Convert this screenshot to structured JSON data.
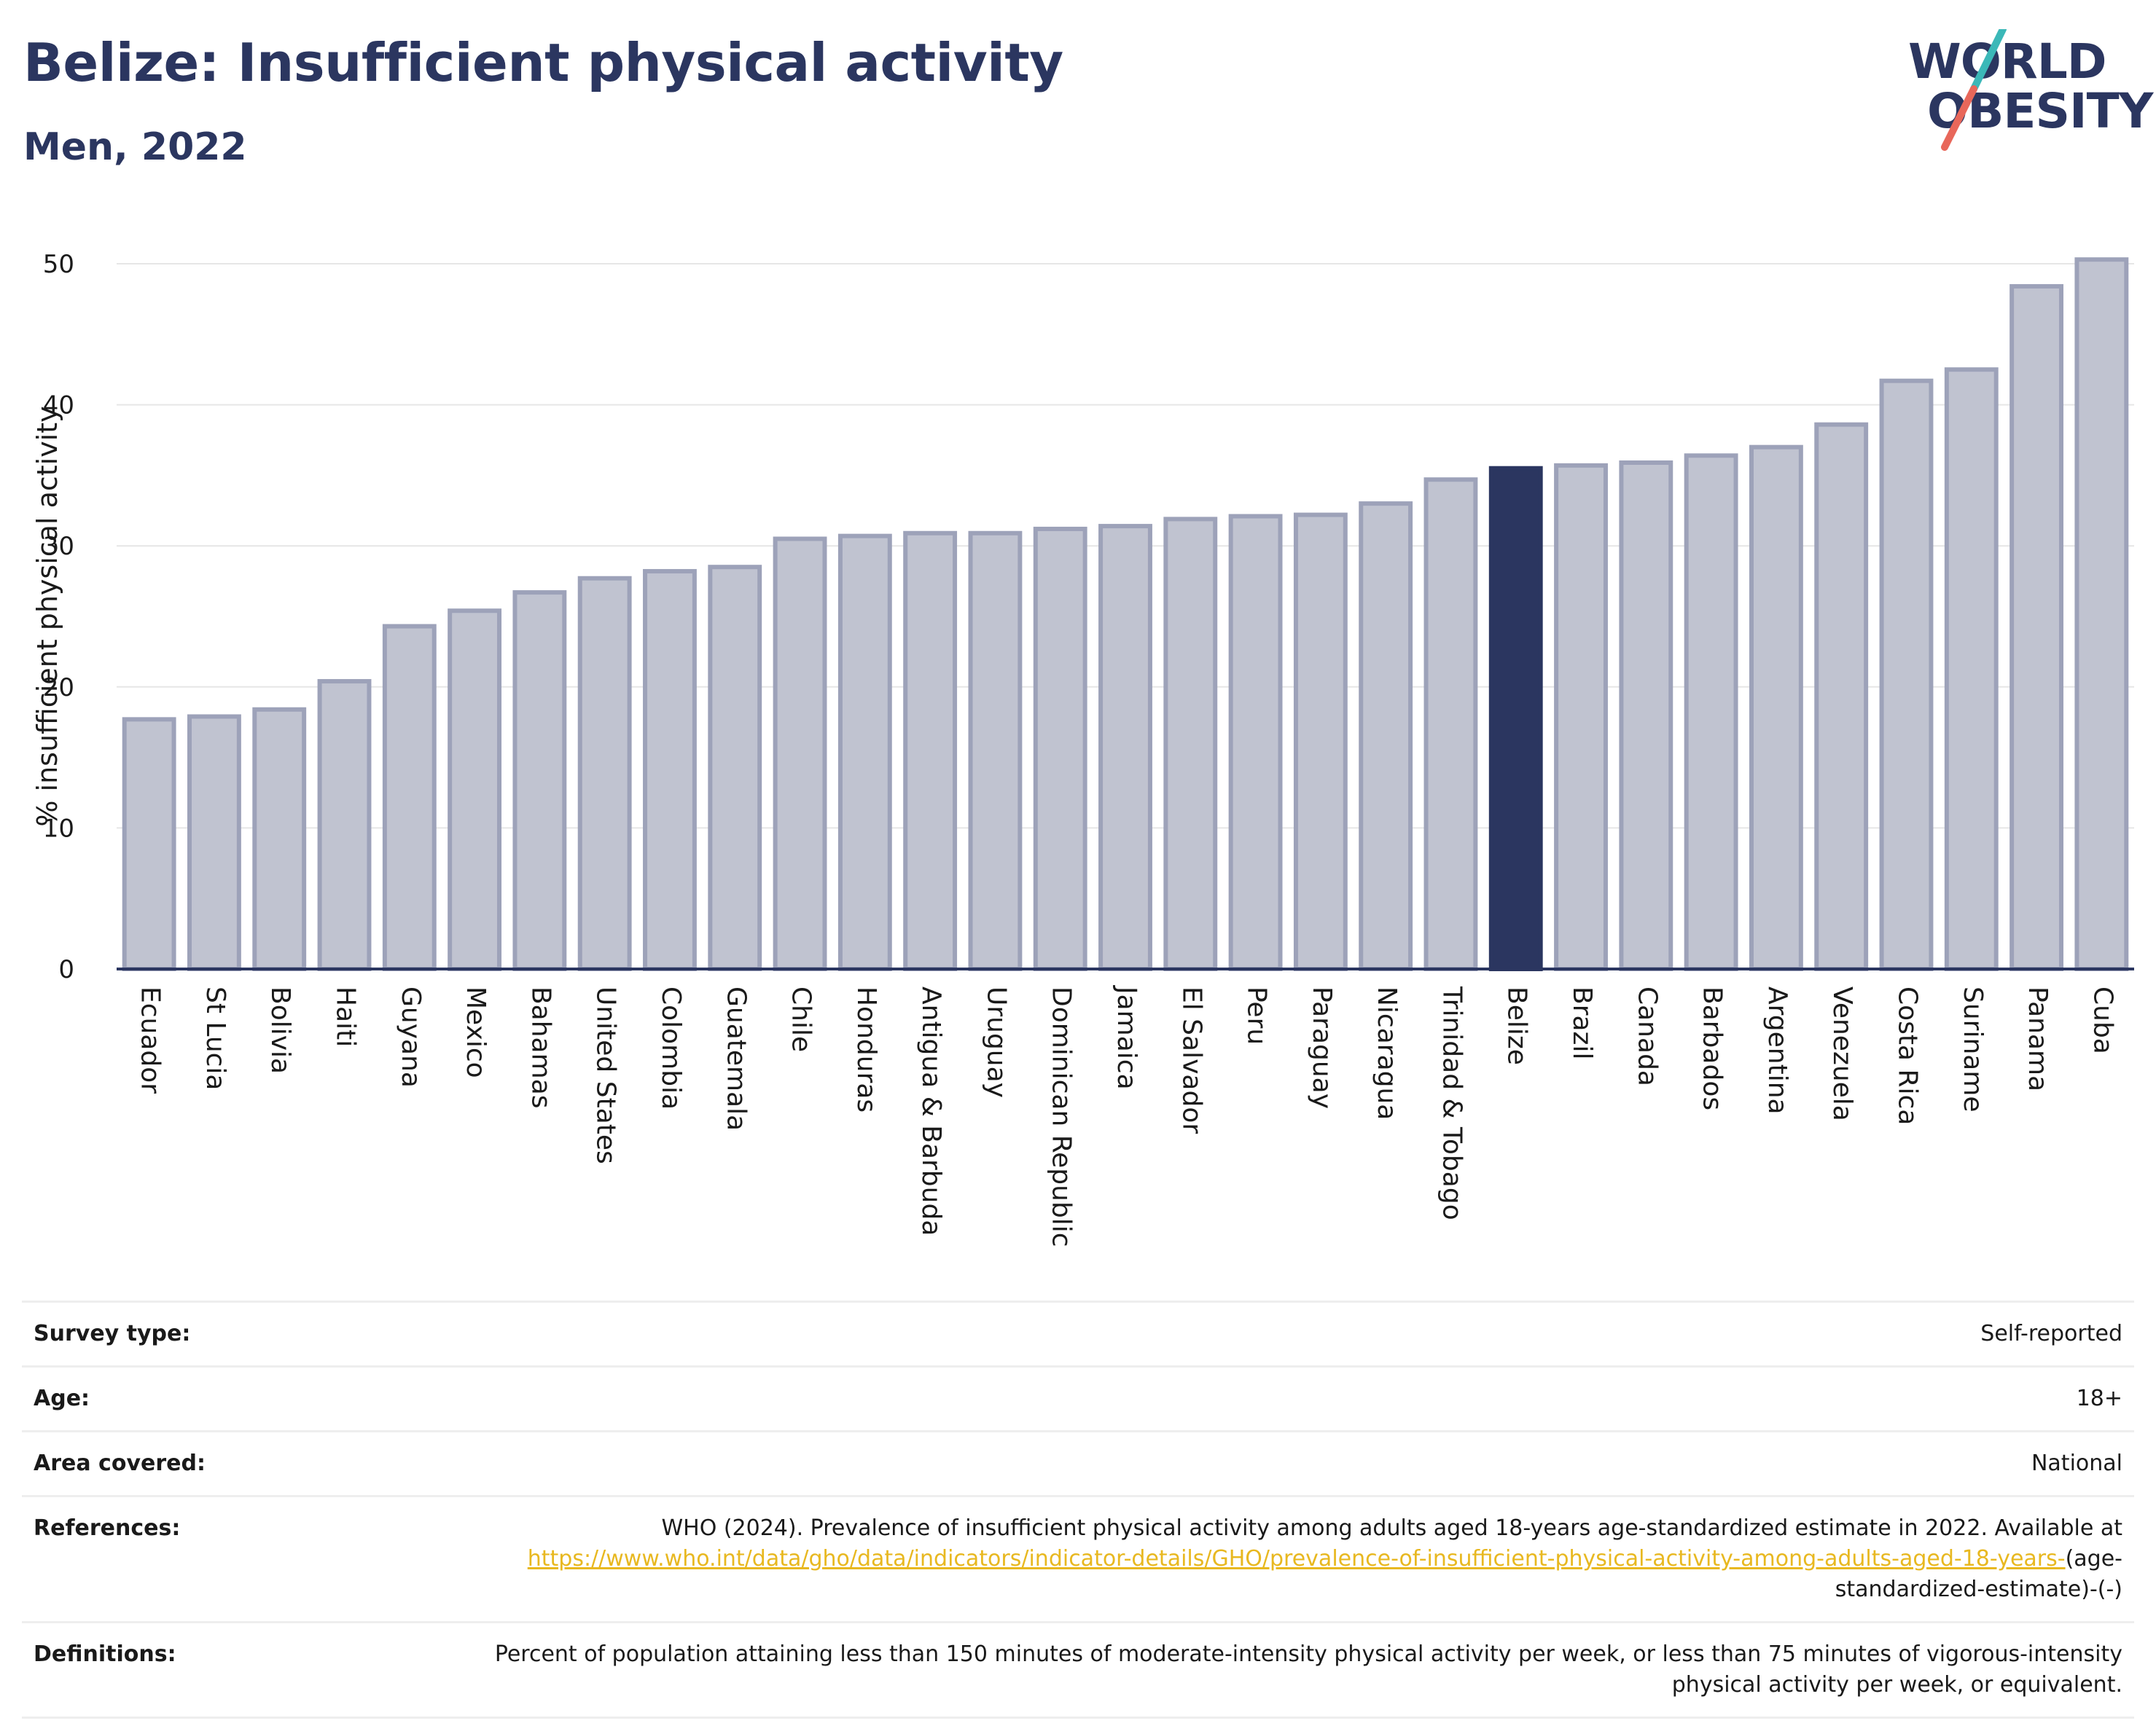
{
  "header": {
    "title": "Belize: Insufficient physical activity",
    "subtitle": "Men, 2022"
  },
  "logo": {
    "line1": "WORLD",
    "line2": "OBESITY",
    "colors": {
      "text": "#2b3660",
      "slash_top": "#3bb8b8",
      "slash_bottom": "#e8675a"
    }
  },
  "colors": {
    "bar_fill": "#c0c3d0",
    "bar_stroke": "#9da2b9",
    "highlight_fill": "#2b3660",
    "grid": "#e6e6e6",
    "axis": "#2b3660"
  },
  "chart_data": {
    "type": "bar",
    "title": "Belize: Insufficient physical activity",
    "subtitle": "Men, 2022",
    "xlabel": "",
    "ylabel": "% insufficient physical activity",
    "ylim": [
      0,
      50
    ],
    "yticks": [
      0,
      10,
      20,
      30,
      40,
      50
    ],
    "grid": true,
    "highlight": "Belize",
    "categories": [
      "Ecuador",
      "St Lucia",
      "Bolivia",
      "Haiti",
      "Guyana",
      "Mexico",
      "Bahamas",
      "United States",
      "Colombia",
      "Guatemala",
      "Chile",
      "Honduras",
      "Antigua & Barbuda",
      "Uruguay",
      "Dominican Republic",
      "Jamaica",
      "El Salvador",
      "Peru",
      "Paraguay",
      "Nicaragua",
      "Trinidad & Tobago",
      "Belize",
      "Brazil",
      "Canada",
      "Barbados",
      "Argentina",
      "Venezuela",
      "Costa Rica",
      "Suriname",
      "Panama",
      "Cuba"
    ],
    "values": [
      17.7,
      17.9,
      18.4,
      20.4,
      24.3,
      25.4,
      26.7,
      27.7,
      28.2,
      28.5,
      30.5,
      30.7,
      30.9,
      30.9,
      31.2,
      31.4,
      31.9,
      32.1,
      32.2,
      33.0,
      34.7,
      35.5,
      35.7,
      35.9,
      36.4,
      37.0,
      38.6,
      41.7,
      42.5,
      48.4,
      50.3
    ]
  },
  "info": {
    "survey_type": {
      "label": "Survey type:",
      "value": "Self-reported"
    },
    "age": {
      "label": "Age:",
      "value": "18+"
    },
    "area": {
      "label": "Area covered:",
      "value": "National"
    },
    "references": {
      "label": "References:",
      "text": "WHO (2024). Prevalence of insufficient physical activity among adults aged 18-years age-standardized estimate in 2022. Available at",
      "link": "https://www.who.int/data/gho/data/indicators/indicator-details/GHO/prevalence-of-insufficient-physical-activity-among-adults-aged-18-years-",
      "suffix": "(age-standardized-estimate)-(-)"
    },
    "definitions": {
      "label": "Definitions:",
      "value": "Percent of population attaining less than 150 minutes of moderate-intensity physical activity per week, or less than 75 minutes of vigorous-intensity physical activity per week, or equivalent."
    }
  }
}
